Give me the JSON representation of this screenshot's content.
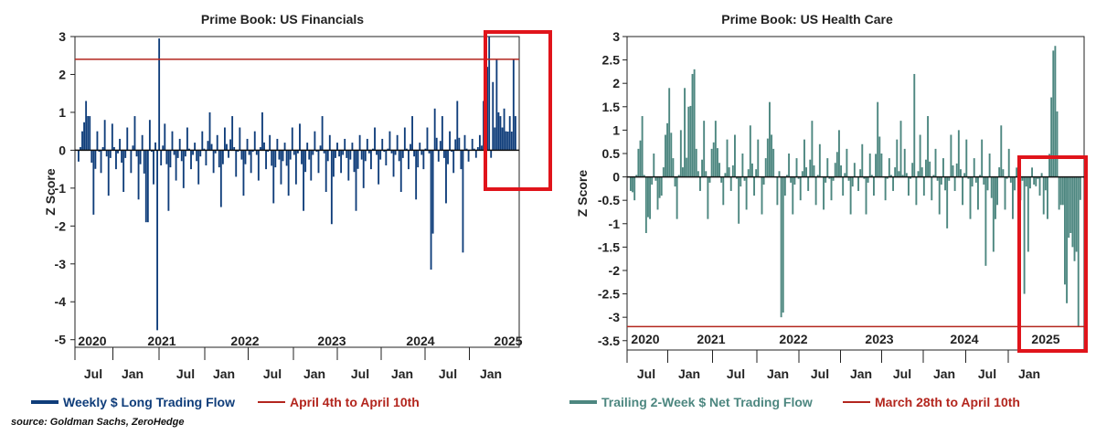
{
  "source_note": "source: Goldman Sachs, ZeroHedge",
  "chart_data": [
    {
      "type": "bar",
      "title": "Prime Book: US Financials",
      "ylabel": "Z Score",
      "ylim": [
        -5.2,
        3
      ],
      "yticks": [
        3,
        2,
        1,
        0,
        -1,
        -2,
        -3,
        -4,
        -5
      ],
      "year_labels": [
        "2020",
        "2021",
        "2022",
        "2023",
        "2024",
        "2025"
      ],
      "month_labels": [
        "Jul",
        "Jan",
        "Jul",
        "Jan",
        "Jul",
        "Jan",
        "Jul",
        "Jan",
        "Jul",
        "Jan",
        "Jul",
        "Jan"
      ],
      "series": [
        {
          "name": "Weekly $ Long Trading Flow",
          "color": "#0f3d7a",
          "anchors": [
            [
              0,
              -0.3
            ],
            [
              2,
              0.5
            ],
            [
              4,
              1.3
            ],
            [
              6,
              0.9
            ],
            [
              8,
              -1.7
            ],
            [
              10,
              0.5
            ],
            [
              12,
              -0.6
            ],
            [
              14,
              0.8
            ],
            [
              16,
              -1.2
            ],
            [
              18,
              0.7
            ],
            [
              20,
              -0.5
            ],
            [
              22,
              0.3
            ],
            [
              24,
              -1.1
            ],
            [
              26,
              0.6
            ],
            [
              28,
              -0.6
            ],
            [
              30,
              0.9
            ],
            [
              32,
              -1.3
            ],
            [
              34,
              0.4
            ],
            [
              36,
              -1.9
            ],
            [
              38,
              0.8
            ],
            [
              40,
              -0.9
            ],
            [
              42,
              1.4
            ],
            [
              44,
              -0.4
            ],
            [
              46,
              0.7
            ],
            [
              48,
              -1.6
            ],
            [
              50,
              0.5
            ],
            [
              52,
              -0.8
            ],
            [
              54,
              0.3
            ],
            [
              56,
              -1.0
            ],
            [
              58,
              0.6
            ],
            [
              60,
              -0.5
            ],
            [
              62,
              0.2
            ],
            [
              64,
              -0.9
            ],
            [
              66,
              0.5
            ],
            [
              68,
              -0.4
            ],
            [
              70,
              1.0
            ],
            [
              72,
              -0.6
            ],
            [
              74,
              0.4
            ],
            [
              76,
              -1.5
            ],
            [
              78,
              0.6
            ],
            [
              80,
              -0.2
            ],
            [
              82,
              0.9
            ],
            [
              84,
              -0.7
            ],
            [
              86,
              0.6
            ],
            [
              88,
              -1.2
            ],
            [
              90,
              0.3
            ],
            [
              92,
              -0.6
            ],
            [
              94,
              0.5
            ],
            [
              96,
              -0.8
            ],
            [
              98,
              1.0
            ],
            [
              100,
              -0.5
            ],
            [
              102,
              0.4
            ],
            [
              104,
              -1.4
            ],
            [
              106,
              0.3
            ],
            [
              108,
              -0.9
            ],
            [
              110,
              0.2
            ],
            [
              112,
              -1.2
            ],
            [
              114,
              0.6
            ],
            [
              116,
              -0.9
            ],
            [
              118,
              0.7
            ],
            [
              120,
              -1.6
            ],
            [
              122,
              0.2
            ],
            [
              124,
              -0.8
            ],
            [
              126,
              0.5
            ],
            [
              128,
              -0.6
            ],
            [
              130,
              0.9
            ],
            [
              132,
              -1.1
            ],
            [
              134,
              0.4
            ],
            [
              136,
              -0.7
            ],
            [
              138,
              0.2
            ],
            [
              140,
              -0.6
            ],
            [
              142,
              0.3
            ],
            [
              144,
              -0.8
            ],
            [
              146,
              0.2
            ],
            [
              148,
              -1.6
            ],
            [
              150,
              0.4
            ],
            [
              152,
              -1.0
            ],
            [
              154,
              0.3
            ],
            [
              156,
              -0.5
            ],
            [
              158,
              0.6
            ],
            [
              160,
              -0.9
            ],
            [
              162,
              0.3
            ],
            [
              164,
              -0.4
            ],
            [
              166,
              0.5
            ],
            [
              168,
              -0.7
            ],
            [
              170,
              0.4
            ],
            [
              172,
              -1.1
            ],
            [
              174,
              0.6
            ],
            [
              176,
              -0.5
            ],
            [
              178,
              0.9
            ],
            [
              180,
              -1.3
            ],
            [
              182,
              0.2
            ],
            [
              184,
              -0.5
            ],
            [
              186,
              0.6
            ],
            [
              188,
              -0.8
            ],
            [
              190,
              1.1
            ],
            [
              192,
              -0.3
            ],
            [
              194,
              0.9
            ],
            [
              196,
              -1.4
            ],
            [
              198,
              0.5
            ],
            [
              200,
              -0.6
            ],
            [
              202,
              1.3
            ],
            [
              204,
              -0.5
            ],
            [
              206,
              0.4
            ],
            [
              208,
              -0.3
            ],
            [
              210,
              0.3
            ],
            [
              212,
              -0.2
            ],
            [
              214,
              0.4
            ],
            [
              216,
              -0.1
            ],
            [
              218,
              0.5
            ],
            [
              220,
              -0.2
            ],
            [
              222,
              0.6
            ]
          ],
          "spikes": [
            [
              42,
              -4.75
            ],
            [
              43,
              2.95
            ],
            [
              37,
              -1.9
            ],
            [
              135,
              -1.95
            ],
            [
              188,
              -3.15
            ],
            [
              189,
              -2.2
            ],
            [
              205,
              -2.7
            ],
            [
              216,
              1.3
            ],
            [
              218,
              2.2
            ],
            [
              219,
              3.0
            ],
            [
              221,
              1.8
            ],
            [
              223,
              2.4
            ],
            [
              224,
              1.0
            ],
            [
              225,
              0.9
            ],
            [
              227,
              1.1
            ],
            [
              228,
              0.5
            ],
            [
              230,
              0.9
            ],
            [
              232,
              2.4
            ],
            [
              233,
              0.9
            ]
          ]
        },
        {
          "name": "April 4th to April 10th",
          "color": "#b3261e",
          "level": 2.4
        }
      ]
    },
    {
      "type": "bar",
      "title": "Prime Book: US Health Care",
      "ylabel": "Z Score",
      "ylim": [
        -3.7,
        3
      ],
      "yticks": [
        3,
        2.5,
        2,
        1.5,
        1,
        0.5,
        0,
        -0.5,
        -1,
        -1.5,
        -2,
        -2.5,
        -3,
        -3.5
      ],
      "year_labels": [
        "2020",
        "2021",
        "2022",
        "2023",
        "2024",
        "2025"
      ],
      "month_labels": [
        "Jul",
        "Jan",
        "Jul",
        "Jan",
        "Jul",
        "Jan",
        "Jul",
        "Jan",
        "Jul",
        "Jan",
        "Jul",
        "Jan"
      ],
      "series": [
        {
          "name": "Trailing 2-Week $ Net Trading Flow",
          "color": "#4d8780",
          "anchors": [
            [
              0,
              -0.3
            ],
            [
              2,
              -0.5
            ],
            [
              4,
              0.6
            ],
            [
              6,
              1.3
            ],
            [
              8,
              -1.2
            ],
            [
              10,
              -0.9
            ],
            [
              12,
              0.5
            ],
            [
              14,
              -0.7
            ],
            [
              16,
              -0.4
            ],
            [
              18,
              0.9
            ],
            [
              20,
              1.9
            ],
            [
              22,
              0.4
            ],
            [
              24,
              -0.9
            ],
            [
              26,
              1.0
            ],
            [
              28,
              -0.5
            ],
            [
              30,
              1.5
            ],
            [
              32,
              2.2
            ],
            [
              34,
              0.6
            ],
            [
              36,
              -0.3
            ],
            [
              38,
              1.2
            ],
            [
              40,
              -0.9
            ],
            [
              42,
              0.6
            ],
            [
              44,
              1.2
            ],
            [
              46,
              0.3
            ],
            [
              48,
              -0.6
            ],
            [
              50,
              0.8
            ],
            [
              52,
              -0.3
            ],
            [
              54,
              0.9
            ],
            [
              56,
              -1.0
            ],
            [
              58,
              0.5
            ],
            [
              60,
              -0.7
            ],
            [
              62,
              1.1
            ],
            [
              64,
              -0.4
            ],
            [
              66,
              0.8
            ],
            [
              68,
              -0.8
            ],
            [
              70,
              0.4
            ],
            [
              72,
              1.6
            ],
            [
              74,
              0.6
            ],
            [
              76,
              -0.6
            ],
            [
              78,
              0.9
            ],
            [
              80,
              -0.4
            ],
            [
              82,
              0.5
            ],
            [
              84,
              -0.8
            ],
            [
              86,
              0.4
            ],
            [
              88,
              -0.5
            ],
            [
              90,
              0.8
            ],
            [
              92,
              -0.3
            ],
            [
              94,
              1.2
            ],
            [
              96,
              -0.6
            ],
            [
              98,
              0.7
            ],
            [
              100,
              -0.7
            ],
            [
              102,
              0.4
            ],
            [
              104,
              -0.5
            ],
            [
              106,
              0.3
            ],
            [
              108,
              1.0
            ],
            [
              110,
              -0.4
            ],
            [
              112,
              0.6
            ],
            [
              114,
              -0.8
            ],
            [
              116,
              0.3
            ],
            [
              118,
              -0.3
            ],
            [
              120,
              0.7
            ],
            [
              122,
              -0.8
            ],
            [
              124,
              0.5
            ],
            [
              126,
              -0.4
            ],
            [
              128,
              1.6
            ],
            [
              130,
              0.5
            ],
            [
              132,
              -0.5
            ],
            [
              134,
              0.4
            ],
            [
              136,
              -0.3
            ],
            [
              138,
              0.8
            ],
            [
              140,
              -0.5
            ],
            [
              142,
              0.6
            ],
            [
              144,
              -0.4
            ],
            [
              146,
              0.3
            ],
            [
              148,
              -0.6
            ],
            [
              150,
              0.9
            ],
            [
              152,
              -0.4
            ],
            [
              154,
              1.3
            ],
            [
              156,
              -0.5
            ],
            [
              158,
              0.6
            ],
            [
              160,
              -0.8
            ],
            [
              162,
              0.4
            ],
            [
              164,
              -1.1
            ],
            [
              166,
              0.9
            ],
            [
              168,
              -0.3
            ],
            [
              170,
              1.0
            ],
            [
              172,
              -0.6
            ],
            [
              174,
              0.8
            ],
            [
              176,
              -0.9
            ],
            [
              178,
              0.4
            ],
            [
              180,
              -0.7
            ],
            [
              182,
              0.8
            ],
            [
              184,
              -1.2
            ],
            [
              186,
              0.5
            ],
            [
              188,
              -1.6
            ],
            [
              190,
              -0.6
            ],
            [
              192,
              1.1
            ],
            [
              194,
              -0.7
            ],
            [
              196,
              0.6
            ],
            [
              198,
              -0.9
            ],
            [
              200,
              0.2
            ],
            [
              202,
              -0.5
            ],
            [
              204,
              0.3
            ],
            [
              206,
              -0.8
            ],
            [
              208,
              0.2
            ],
            [
              210,
              -0.6
            ],
            [
              212,
              0.5
            ],
            [
              214,
              -0.3
            ],
            [
              216,
              -0.4
            ],
            [
              218,
              1.6
            ],
            [
              220,
              1.2
            ],
            [
              222,
              -0.6
            ]
          ],
          "spikes": [
            [
              78,
              -3.0
            ],
            [
              79,
              -2.9
            ],
            [
              28,
              1.9
            ],
            [
              33,
              2.3
            ],
            [
              140,
              1.2
            ],
            [
              147,
              2.2
            ],
            [
              184,
              -1.9
            ],
            [
              204,
              -2.5
            ],
            [
              206,
              -1.6
            ],
            [
              210,
              -0.2
            ],
            [
              212,
              -0.4
            ],
            [
              214,
              -0.8
            ],
            [
              216,
              -0.9
            ],
            [
              218,
              1.7
            ],
            [
              219,
              2.7
            ],
            [
              220,
              2.8
            ],
            [
              221,
              1.4
            ],
            [
              222,
              -0.7
            ],
            [
              223,
              -0.6
            ],
            [
              225,
              -2.3
            ],
            [
              226,
              -2.7
            ],
            [
              227,
              -1.3
            ],
            [
              228,
              -1.2
            ],
            [
              229,
              -1.5
            ],
            [
              230,
              -1.8
            ],
            [
              231,
              -1.6
            ],
            [
              232,
              -3.2
            ]
          ]
        },
        {
          "name": "March 28th to April 10th",
          "color": "#b3261e",
          "level": -3.2
        }
      ]
    }
  ]
}
